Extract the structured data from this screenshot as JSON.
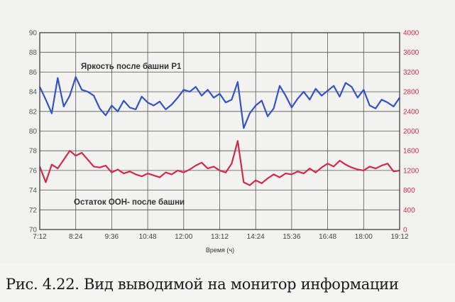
{
  "caption": "Рис. 4.22. Вид  выводимой на монитор информации",
  "chart_data": {
    "type": "line",
    "title": "",
    "xlabel": "Время (ч)",
    "ylabel_left": "",
    "ylabel_right": "",
    "x_ticks": [
      "7:12",
      "8:24",
      "9:36",
      "10:48",
      "12:00",
      "13:12",
      "14:24",
      "15:36",
      "16:48",
      "18:00",
      "19:12"
    ],
    "xlim": [
      "7:12",
      "19:12"
    ],
    "y_left": {
      "lim": [
        70,
        90
      ],
      "ticks": [
        70,
        72,
        74,
        76,
        78,
        80,
        82,
        84,
        86,
        88,
        90
      ]
    },
    "y_right": {
      "lim": [
        0,
        4000
      ],
      "ticks": [
        0,
        400,
        800,
        1200,
        1600,
        2000,
        2400,
        2800,
        3200,
        3600,
        4000
      ]
    },
    "grid": true,
    "colors": {
      "blue_series": "#3355c4",
      "red_series": "#d42a48",
      "right_axis": "#d0304a",
      "grid": "#555555"
    },
    "series": [
      {
        "name": "Яркость после башни Р1",
        "axis": "left",
        "x": [
          "7:12",
          "7:24",
          "7:36",
          "7:48",
          "8:00",
          "8:12",
          "8:24",
          "8:36",
          "8:48",
          "9:00",
          "9:12",
          "9:24",
          "9:36",
          "9:48",
          "10:00",
          "10:12",
          "10:24",
          "10:36",
          "10:48",
          "11:00",
          "11:12",
          "11:24",
          "11:36",
          "11:48",
          "12:00",
          "12:12",
          "12:24",
          "12:36",
          "12:48",
          "13:00",
          "13:12",
          "13:24",
          "13:36",
          "13:48",
          "14:00",
          "14:12",
          "14:24",
          "14:36",
          "14:48",
          "15:00",
          "15:12",
          "15:24",
          "15:36",
          "15:48",
          "16:00",
          "16:12",
          "16:24",
          "16:36",
          "16:48",
          "17:00",
          "17:12",
          "17:24",
          "17:36",
          "17:48",
          "18:00",
          "18:12",
          "18:24",
          "18:36",
          "18:48",
          "19:00",
          "19:12"
        ],
        "values": [
          84.5,
          83.2,
          81.8,
          85.4,
          82.5,
          83.6,
          85.5,
          84.2,
          84.0,
          83.6,
          82.3,
          81.6,
          82.6,
          82.0,
          83.1,
          82.4,
          82.2,
          83.5,
          82.9,
          82.6,
          83.0,
          82.2,
          82.7,
          83.4,
          84.2,
          84.0,
          84.5,
          83.6,
          84.2,
          83.4,
          83.8,
          82.9,
          83.2,
          85.0,
          80.3,
          81.8,
          82.6,
          83.1,
          81.5,
          82.3,
          84.6,
          83.6,
          82.4,
          83.3,
          84.0,
          83.2,
          84.3,
          83.6,
          84.1,
          84.6,
          83.5,
          84.9,
          84.5,
          83.4,
          84.2,
          82.6,
          82.3,
          83.2,
          82.9,
          82.5,
          83.4
        ]
      },
      {
        "name": "Остаток ООН- после башни",
        "axis": "left",
        "x": [
          "7:12",
          "7:24",
          "7:36",
          "7:48",
          "8:00",
          "8:12",
          "8:24",
          "8:36",
          "8:48",
          "9:00",
          "9:12",
          "9:24",
          "9:36",
          "9:48",
          "10:00",
          "10:12",
          "10:24",
          "10:36",
          "10:48",
          "11:00",
          "11:12",
          "11:24",
          "11:36",
          "11:48",
          "12:00",
          "12:12",
          "12:24",
          "12:36",
          "12:48",
          "13:00",
          "13:12",
          "13:24",
          "13:36",
          "13:48",
          "14:00",
          "14:12",
          "14:24",
          "14:36",
          "14:48",
          "15:00",
          "15:12",
          "15:24",
          "15:36",
          "15:48",
          "16:00",
          "16:12",
          "16:24",
          "16:36",
          "16:48",
          "17:00",
          "17:12",
          "17:24",
          "17:36",
          "17:48",
          "18:00",
          "18:12",
          "18:24",
          "18:36",
          "18:48",
          "19:00",
          "19:12"
        ],
        "values": [
          76.4,
          74.8,
          76.6,
          76.2,
          77.1,
          78.0,
          77.5,
          77.8,
          77.1,
          76.4,
          76.3,
          76.5,
          75.8,
          76.1,
          75.7,
          75.9,
          75.6,
          75.4,
          75.7,
          75.5,
          75.3,
          75.8,
          75.6,
          76.0,
          75.8,
          76.1,
          76.5,
          76.8,
          76.2,
          76.4,
          76.0,
          75.8,
          76.7,
          79.0,
          74.8,
          74.5,
          75.0,
          74.7,
          75.2,
          75.6,
          75.3,
          75.7,
          75.6,
          75.9,
          75.7,
          76.2,
          75.8,
          76.3,
          76.7,
          76.4,
          77.0,
          76.6,
          76.3,
          76.1,
          76.0,
          76.4,
          76.2,
          76.5,
          76.7,
          75.9,
          76.0
        ]
      }
    ],
    "annotations": [
      {
        "text": "Яркость после башни Р1",
        "series": 0
      },
      {
        "text": "Остаток ООН- после башни",
        "series": 1
      }
    ]
  }
}
